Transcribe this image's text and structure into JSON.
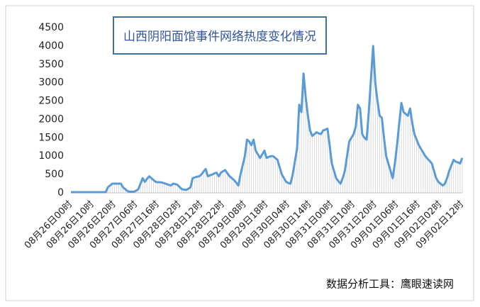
{
  "chart_data": {
    "type": "line",
    "title": "山西阴阳面馆事件网络热度变化情况",
    "source": "数据分析工具：鹰眼速读网",
    "categories": [
      "08月26日00时",
      null,
      null,
      null,
      null,
      null,
      null,
      null,
      null,
      null,
      "08月26日10时",
      null,
      null,
      null,
      null,
      null,
      null,
      null,
      null,
      null,
      "08月26日20时",
      null,
      null,
      null,
      null,
      null,
      null,
      null,
      null,
      null,
      "08月27日06时",
      null,
      null,
      null,
      null,
      null,
      null,
      null,
      null,
      null,
      "08月27日16时",
      null,
      null,
      null,
      null,
      null,
      null,
      null,
      null,
      null,
      "08月28日02时",
      null,
      null,
      null,
      null,
      null,
      null,
      null,
      null,
      null,
      "08月28日12时",
      null,
      null,
      null,
      null,
      null,
      null,
      null,
      null,
      null,
      "08月28日22时",
      null,
      null,
      null,
      null,
      null,
      null,
      null,
      null,
      null,
      "08月29日08时",
      null,
      null,
      null,
      null,
      null,
      null,
      null,
      null,
      null,
      "08月29日18时",
      null,
      null,
      null,
      null,
      null,
      null,
      null,
      null,
      null,
      "08月30日04时",
      null,
      null,
      null,
      null,
      null,
      null,
      null,
      null,
      null,
      "08月30日14时",
      null,
      null,
      null,
      null,
      null,
      null,
      null,
      null,
      null,
      "08月31日00时",
      null,
      null,
      null,
      null,
      null,
      null,
      null,
      null,
      null,
      "08月31日10时",
      null,
      null,
      null,
      null,
      null,
      null,
      null,
      null,
      null,
      "08月31日20时",
      null,
      null,
      null,
      null,
      null,
      null,
      null,
      null,
      null,
      "09月01日06时",
      null,
      null,
      null,
      null,
      null,
      null,
      null,
      null,
      null,
      "09月01日16时",
      null,
      null,
      null,
      null,
      null,
      null,
      null,
      null,
      null,
      "09月02日02时",
      null,
      null,
      null,
      null,
      null,
      null,
      null,
      null,
      null,
      "09月02日12时"
    ],
    "values": [
      20,
      20,
      20,
      20,
      20,
      20,
      20,
      20,
      20,
      20,
      20,
      20,
      20,
      20,
      20,
      20,
      20,
      150,
      200,
      250,
      250,
      250,
      250,
      250,
      150,
      100,
      50,
      30,
      30,
      30,
      60,
      100,
      250,
      400,
      300,
      380,
      450,
      400,
      350,
      300,
      290,
      290,
      280,
      260,
      240,
      220,
      200,
      250,
      240,
      220,
      160,
      100,
      90,
      80,
      110,
      150,
      400,
      420,
      440,
      450,
      500,
      580,
      650,
      450,
      480,
      500,
      530,
      550,
      450,
      550,
      590,
      620,
      530,
      450,
      400,
      350,
      280,
      200,
      500,
      750,
      1000,
      1450,
      1400,
      1300,
      1450,
      1150,
      1050,
      950,
      1050,
      1150,
      950,
      980,
      1000,
      1000,
      950,
      900,
      700,
      500,
      400,
      300,
      270,
      250,
      500,
      850,
      1200,
      2400,
      2200,
      3250,
      2600,
      2100,
      1700,
      1550,
      1600,
      1650,
      1620,
      1600,
      1700,
      1720,
      1750,
      1300,
      800,
      600,
      400,
      320,
      250,
      400,
      600,
      1000,
      1400,
      1500,
      1600,
      1800,
      2400,
      2300,
      1600,
      1500,
      1450,
      2200,
      3100,
      4000,
      3000,
      2500,
      2100,
      2050,
      1500,
      1000,
      800,
      600,
      400,
      800,
      1300,
      1900,
      2450,
      2200,
      2150,
      2100,
      2300,
      1900,
      1600,
      1450,
      1300,
      1200,
      1100,
      1000,
      930,
      870,
      800,
      600,
      400,
      300,
      250,
      200,
      250,
      400,
      600,
      750,
      900,
      850,
      830,
      800,
      950
    ],
    "color": "#5b9bd5",
    "ylim": [
      0,
      4500
    ],
    "yticks": [
      0,
      500,
      1000,
      1500,
      2000,
      2500,
      3000,
      3500,
      4000,
      4500
    ]
  }
}
